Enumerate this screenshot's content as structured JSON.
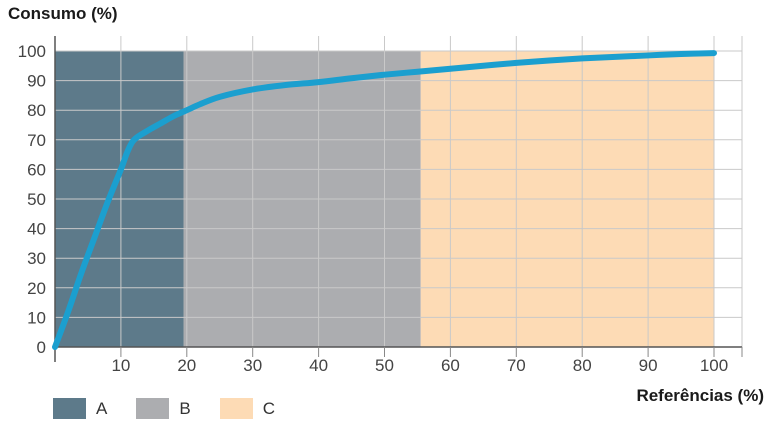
{
  "chart_data": {
    "type": "line",
    "ylabel": "Consumo (%)",
    "xlabel": "Referências (%)",
    "xlim": [
      0,
      100
    ],
    "ylim": [
      0,
      100
    ],
    "x_ticks": [
      10,
      20,
      30,
      40,
      50,
      60,
      70,
      80,
      90,
      100
    ],
    "y_ticks": [
      0,
      10,
      20,
      30,
      40,
      50,
      60,
      70,
      80,
      90,
      100
    ],
    "grid": true,
    "zones": [
      {
        "label": "A",
        "x_start": 0,
        "x_end": 19.5,
        "color": "#5d7a8a"
      },
      {
        "label": "B",
        "x_start": 19.5,
        "x_end": 55.5,
        "color": "#acadb0"
      },
      {
        "label": "C",
        "x_start": 55.5,
        "x_end": 100,
        "color": "#fddbb5"
      }
    ],
    "series": [
      {
        "color": "#1b9fcf",
        "x": [
          0,
          2,
          4,
          6,
          8,
          10,
          11,
          12,
          14,
          16,
          18,
          20,
          22,
          25,
          30,
          35,
          40,
          45,
          50,
          55,
          60,
          65,
          70,
          75,
          80,
          85,
          90,
          95,
          100
        ],
        "y": [
          0,
          12,
          25,
          37,
          49,
          60,
          66,
          70,
          73,
          75.5,
          78,
          80,
          82,
          84.5,
          87,
          88.5,
          89.5,
          90.8,
          92,
          93,
          94,
          95,
          96,
          96.8,
          97.5,
          98,
          98.5,
          99,
          99.3
        ]
      }
    ]
  }
}
